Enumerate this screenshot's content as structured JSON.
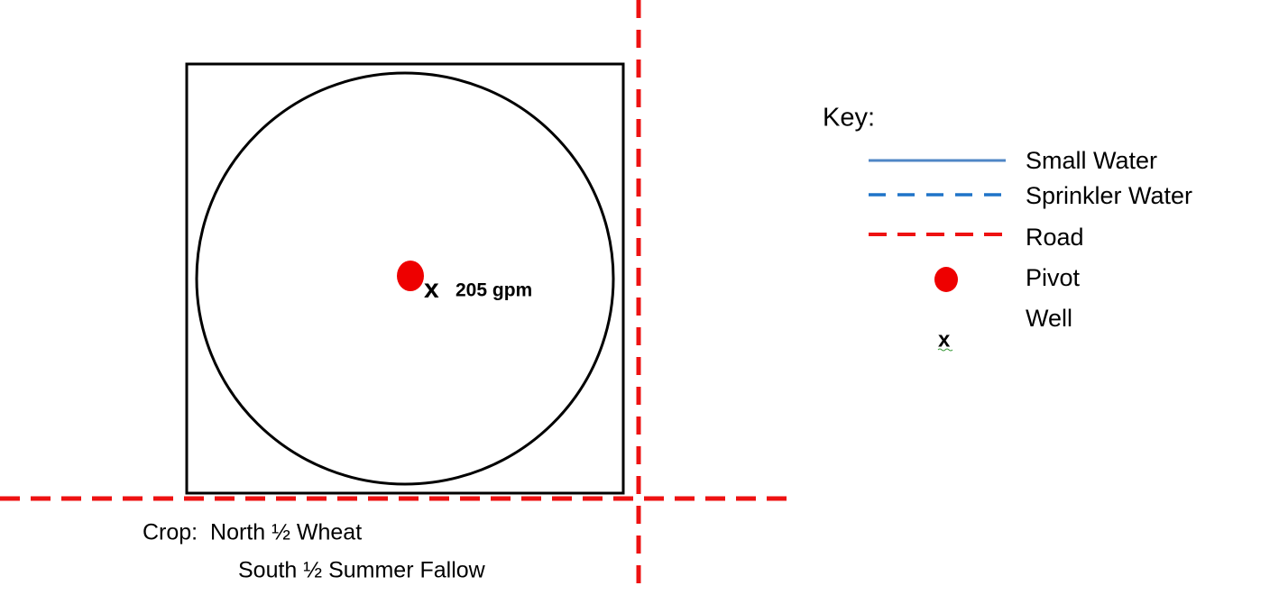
{
  "map": {
    "well_symbol": "x",
    "well_label": "205 gpm",
    "crop": [
      "Crop:  North ½ Wheat",
      "South ½ Summer Fallow"
    ]
  },
  "key": {
    "title": "Key:",
    "items": [
      {
        "label": "Small Water"
      },
      {
        "label": "Sprinkler Water"
      },
      {
        "label": "Road"
      },
      {
        "label": "Pivot"
      },
      {
        "symbol": "x",
        "label": "Well"
      }
    ]
  }
}
